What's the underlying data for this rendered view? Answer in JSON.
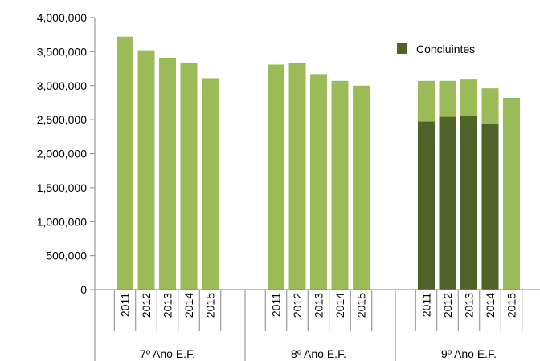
{
  "chart_data": {
    "type": "bar",
    "stacked_overlay": true,
    "groups": [
      {
        "label": "7º Ano E.F.",
        "years": [
          "2011",
          "2012",
          "2013",
          "2014",
          "2015"
        ],
        "total": [
          3720000,
          3520000,
          3410000,
          3340000,
          3110000
        ],
        "concluintes": [
          null,
          null,
          null,
          null,
          null
        ]
      },
      {
        "label": "8º Ano E.F.",
        "years": [
          "2011",
          "2012",
          "2013",
          "2014",
          "2015"
        ],
        "total": [
          3310000,
          3340000,
          3170000,
          3070000,
          3000000
        ],
        "concluintes": [
          null,
          null,
          null,
          null,
          null
        ]
      },
      {
        "label": "9º Ano E.F.",
        "years": [
          "2011",
          "2012",
          "2013",
          "2014",
          "2015"
        ],
        "total": [
          3070000,
          3070000,
          3090000,
          2960000,
          2820000
        ],
        "concluintes": [
          2470000,
          2540000,
          2560000,
          2430000,
          null
        ]
      }
    ],
    "series": [
      {
        "name": "Concluintes",
        "color": "#4f6228"
      }
    ],
    "total_color": "#9bbb59",
    "ylim": [
      0,
      4000000
    ],
    "yticks": [
      0,
      500000,
      1000000,
      1500000,
      2000000,
      2500000,
      3000000,
      3500000,
      4000000
    ],
    "ytick_labels": [
      "0",
      "500,000",
      "1,000,000",
      "1,500,000",
      "2,000,000",
      "2,500,000",
      "3,000,000",
      "3,500,000",
      "4,000,000"
    ],
    "grid": false,
    "legend": {
      "position": "top-right"
    },
    "title": "",
    "xlabel": "",
    "ylabel": ""
  }
}
